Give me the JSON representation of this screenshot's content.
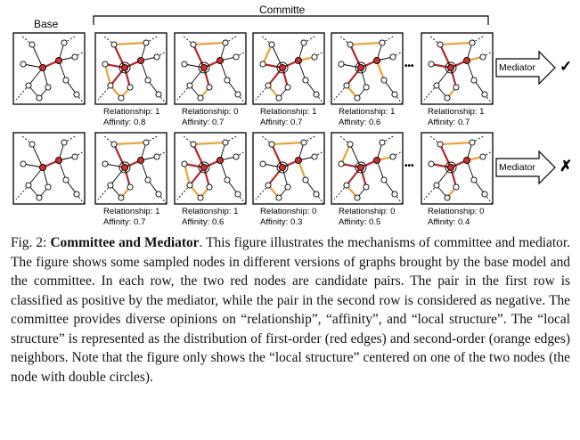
{
  "figure": {
    "base_label": "Base",
    "committee_label": "Committe",
    "mediator_label": "Mediator",
    "ellipsis": "•••",
    "rows": [
      {
        "result_symbol": "✓",
        "panels": [
          {
            "relationship": "Relationship: 1",
            "affinity": "Affinity: 0.8"
          },
          {
            "relationship": "Relationship: 0",
            "affinity": "Affinity: 0.7"
          },
          {
            "relationship": "Relationship: 1",
            "affinity": "Affinity: 0.7"
          },
          {
            "relationship": "Relationship: 1",
            "affinity": "Affinity: 0.6"
          },
          {
            "relationship": "Relationship: 1",
            "affinity": "Affinity: 0.7"
          }
        ]
      },
      {
        "result_symbol": "✗",
        "panels": [
          {
            "relationship": "Relationship: 1",
            "affinity": "Affinity: 0.7"
          },
          {
            "relationship": "Relationship: 1",
            "affinity": "Affinity: 0.6"
          },
          {
            "relationship": "Relationship: 0",
            "affinity": "Affinity: 0.3"
          },
          {
            "relationship": "Relationship: 0",
            "affinity": "Affinity: 0.5"
          },
          {
            "relationship": "Relationship: 0",
            "affinity": "Affinity: 0.4"
          }
        ]
      }
    ]
  },
  "caption": {
    "prefix": "Fig. 2:",
    "title": "Committee and Mediator",
    "body": ". This figure illustrates the mechanisms of committee and mediator. The figure shows some sampled nodes in different versions of graphs brought by the base model and the committee. In each row, the two red nodes are candidate pairs. The pair in the first row is classified as positive by the mediator, while the pair in the second row is considered as negative. The committee provides diverse opinions on “relationship”, “affinity”, and “local structure”. The “local structure” is represented as the distribution of first-order (red edges) and second-order (orange edges) neighbors. Note that the figure only shows the “local structure” centered on one of the two nodes (the node with double circles)."
  },
  "colors": {
    "red_node": "#c8302b",
    "red_edge": "#b3262a",
    "orange_edge": "#e8a33a"
  }
}
